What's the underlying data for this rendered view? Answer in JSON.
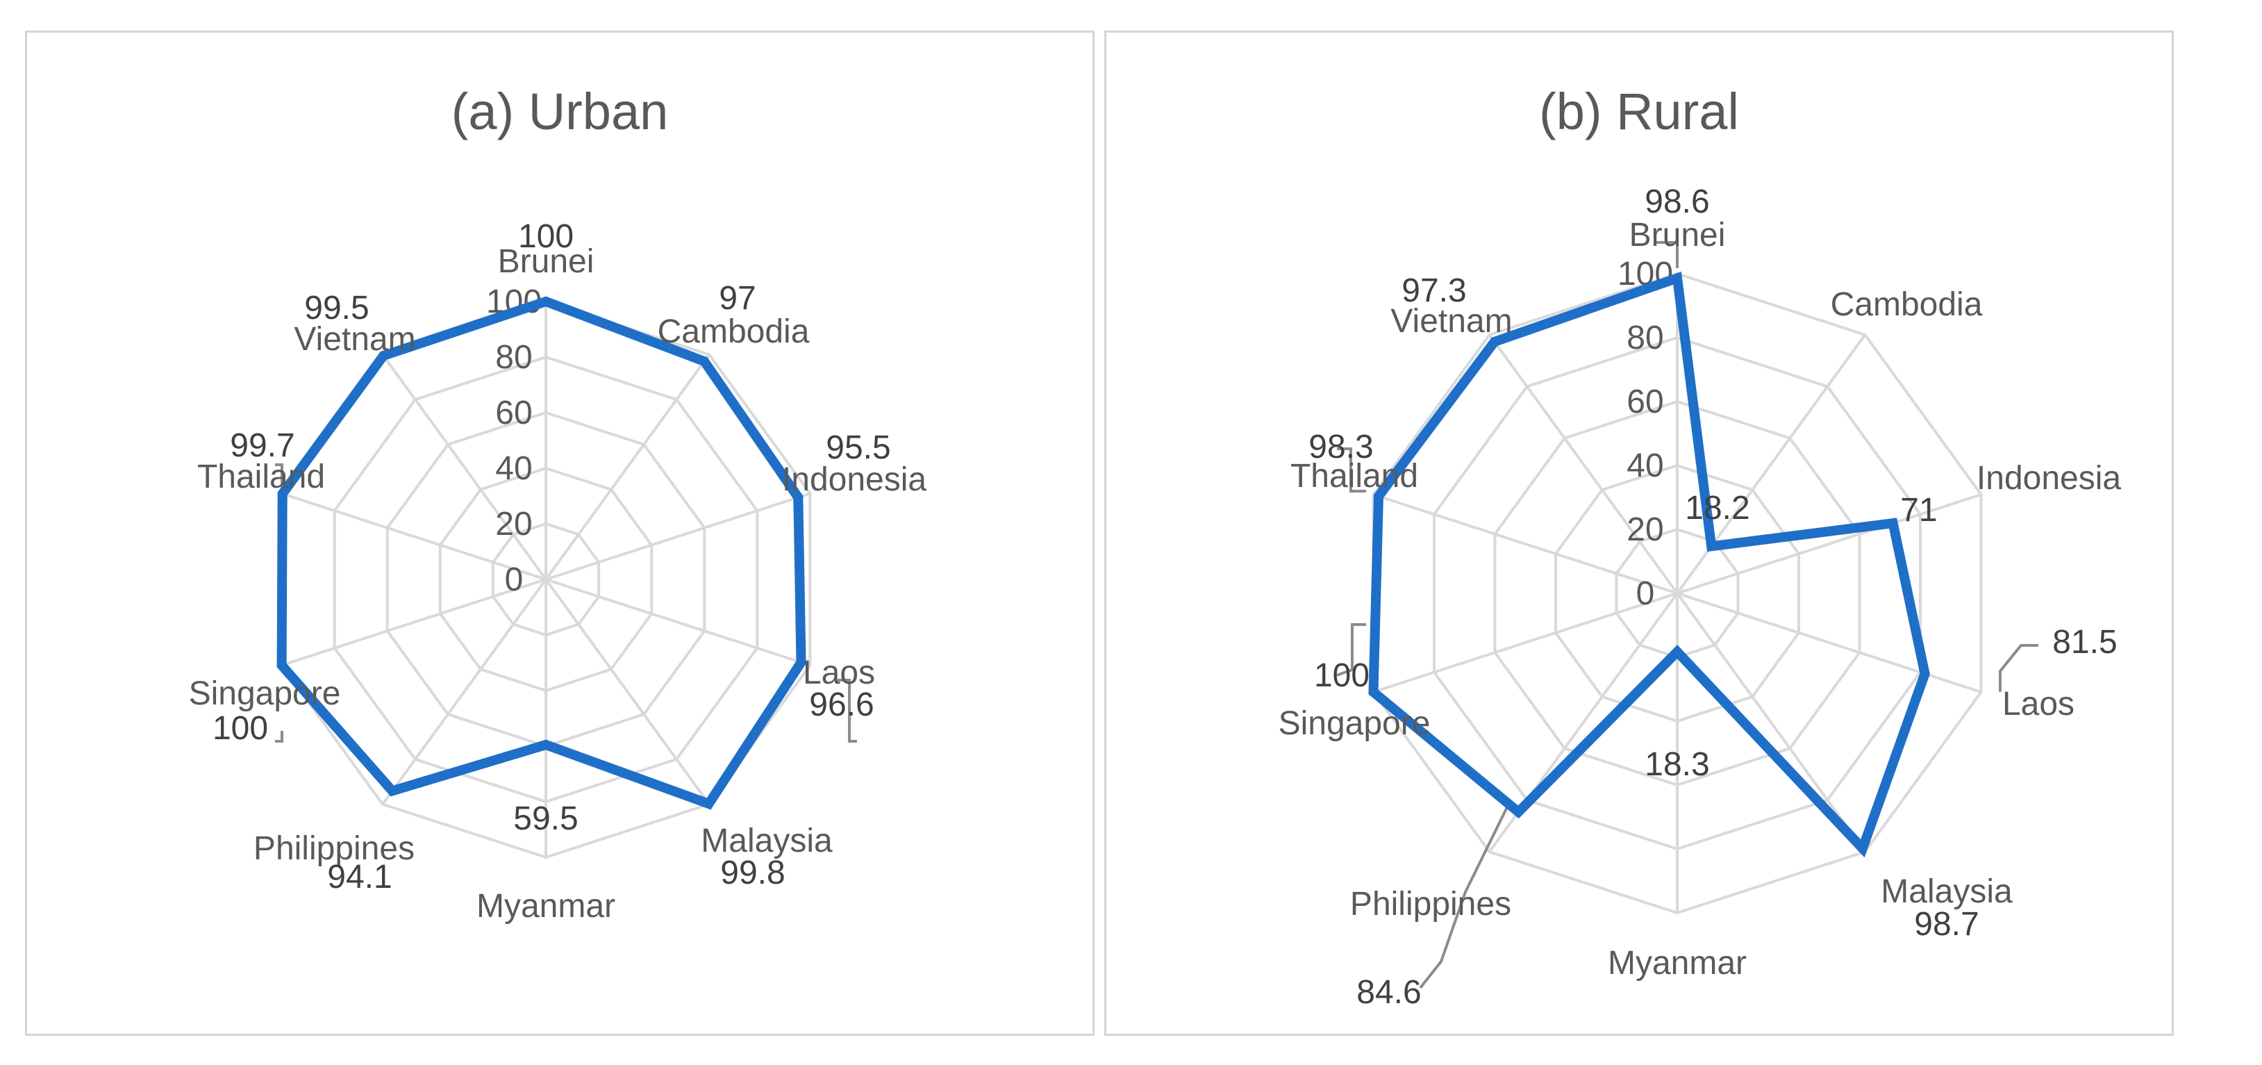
{
  "chart_data": [
    {
      "type": "radar",
      "title": "(a) Urban",
      "categories": [
        "Brunei",
        "Cambodia",
        "Indonesia",
        "Laos",
        "Malaysia",
        "Myanmar",
        "Philippines",
        "Singapore",
        "Thailand",
        "Vietnam"
      ],
      "series": [
        {
          "values": [
            100,
            97,
            95.5,
            96.6,
            99.8,
            59.5,
            94.1,
            100,
            99.7,
            99.5
          ]
        }
      ],
      "data_labels": [
        "100",
        "97",
        "95.5",
        "96.6",
        "99.8",
        "59.5",
        "94.1",
        "100",
        "99.7",
        "99.5"
      ],
      "radial_ticks": [
        "0",
        "20",
        "40",
        "60",
        "80",
        "100"
      ],
      "rlim": [
        0,
        100
      ],
      "grid": true,
      "series_color": "#1f6fc8",
      "grid_color": "#d9d9d9"
    },
    {
      "type": "radar",
      "title": "(b) Rural",
      "categories": [
        "Brunei",
        "Cambodia",
        "Indonesia",
        "Laos",
        "Malaysia",
        "Myanmar",
        "Philippines",
        "Singapore",
        "Thailand",
        "Vietnam"
      ],
      "series": [
        {
          "values": [
            98.6,
            18.2,
            71,
            81.5,
            98.7,
            18.3,
            84.6,
            100,
            98.3,
            97.3
          ]
        }
      ],
      "data_labels": [
        "98.6",
        "18.2",
        "71",
        "81.5",
        "98.7",
        "18.3",
        "84.6",
        "100",
        "98.3",
        "97.3"
      ],
      "radial_ticks": [
        "0",
        "20",
        "40",
        "60",
        "80",
        "100"
      ],
      "rlim": [
        0,
        100
      ],
      "grid": true,
      "series_color": "#1f6fc8",
      "grid_color": "#d9d9d9"
    }
  ]
}
